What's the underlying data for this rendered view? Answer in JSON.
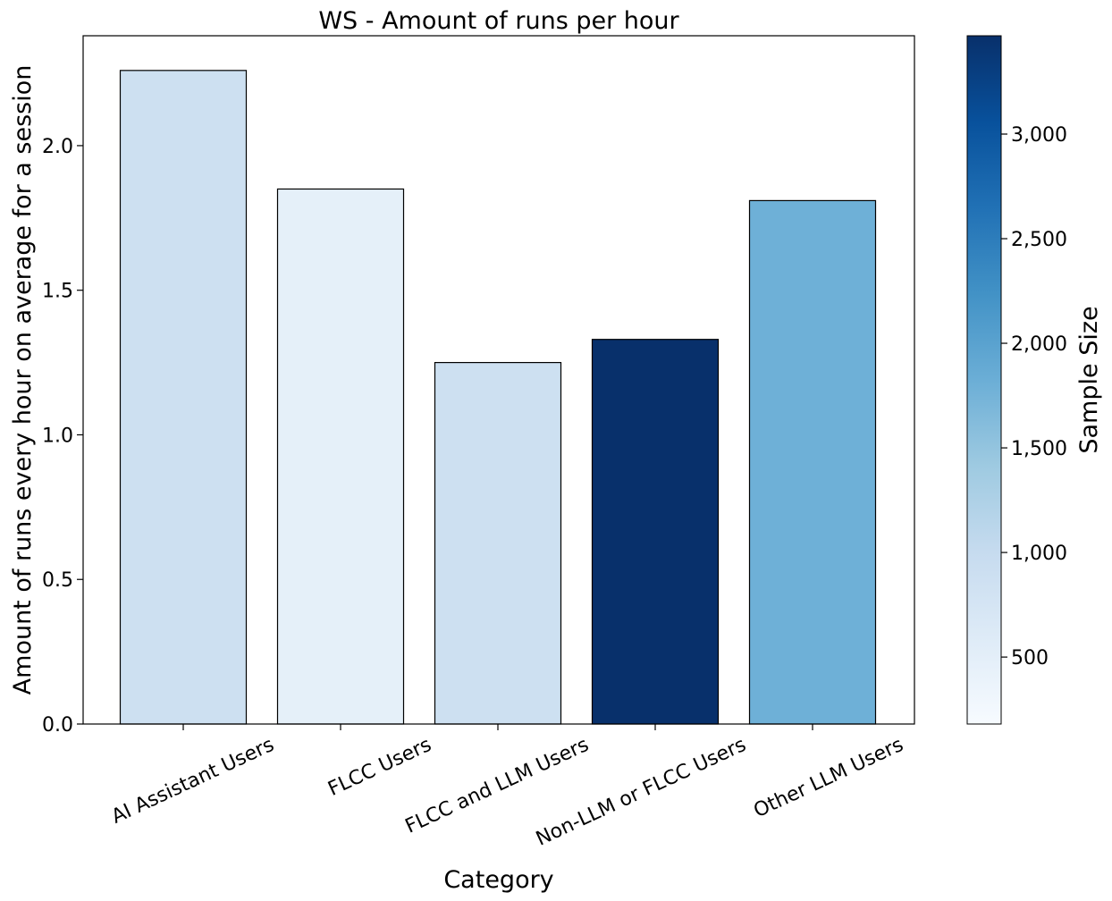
{
  "chart_data": {
    "type": "bar",
    "title": "WS - Amount of runs per hour",
    "xlabel": "Category",
    "ylabel": "Amount of runs every hour on average for a session",
    "categories": [
      "AI Assistant Users",
      "FLCC Users",
      "FLCC and LLM Users",
      "Non-LLM or FLCC Users",
      "Other LLM Users"
    ],
    "values": [
      2.26,
      1.85,
      1.25,
      1.33,
      1.81
    ],
    "sample_sizes": [
      880,
      470,
      880,
      3470,
      1800
    ],
    "ylim": [
      0,
      2.38
    ],
    "yticks": [
      0.0,
      0.5,
      1.0,
      1.5,
      2.0
    ],
    "ytick_labels": [
      "0.0",
      "0.5",
      "1.0",
      "1.5",
      "2.0"
    ],
    "colorbar": {
      "label": "Sample Size",
      "colormap": "Blues",
      "range": [
        180,
        3470
      ],
      "ticks": [
        500,
        1000,
        1500,
        2000,
        2500,
        3000
      ],
      "tick_labels": [
        "500",
        "1,000",
        "1,500",
        "2,000",
        "2,500",
        "3,000"
      ]
    },
    "grid": false,
    "legend": "none",
    "bar_edge_color": "#000000"
  }
}
